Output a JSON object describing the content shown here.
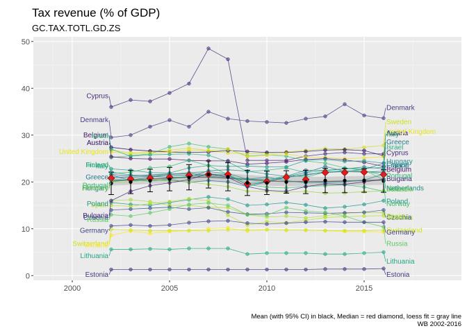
{
  "chart_data": {
    "type": "line",
    "title": "Tax revenue (% of GDP)",
    "subtitle": "GC.TAX.TOTL.GD.ZS",
    "caption": [
      "Mean (with 95% CI) in black, Median = red diamond, loess fit = gray line",
      "WB 2002-2016"
    ],
    "xlabel": "",
    "ylabel": "",
    "xlim": [
      1998,
      2020
    ],
    "ylim": [
      -1,
      51
    ],
    "x_ticks": [
      2000,
      2005,
      2010,
      2015
    ],
    "y_ticks": [
      0,
      10,
      20,
      30,
      40,
      50
    ],
    "grid": true,
    "x": [
      2002,
      2003,
      2004,
      2005,
      2006,
      2007,
      2008,
      2009,
      2010,
      2011,
      2012,
      2013,
      2014,
      2015,
      2016
    ],
    "series": [
      {
        "name": "Cyprus",
        "color": "#472d7b",
        "values": [
          36.0,
          37.5,
          37.2,
          39.0,
          41.0,
          48.5,
          46.2,
          24.6,
          24.6,
          24.6,
          25.5,
          26.0,
          26.3,
          26.0,
          26.0
        ]
      },
      {
        "name": "Denmark",
        "color": "#433e85",
        "values": [
          29.5,
          30.0,
          31.8,
          33.2,
          31.8,
          35.0,
          33.5,
          33.0,
          32.8,
          32.6,
          33.5,
          34.0,
          36.6,
          34.2,
          33.6
        ]
      },
      {
        "name": "Sweden",
        "color": "#cde11d",
        "values": [
          26.8,
          26.2,
          26.4,
          26.8,
          27.2,
          26.7,
          26.2,
          26.0,
          26.1,
          26.4,
          26.7,
          27.1,
          27.0,
          27.4,
          27.8
        ]
      },
      {
        "name": "Norway",
        "color": "#3fbc73",
        "values": [
          25.2,
          25.6,
          26.0,
          27.5,
          28.2,
          27.5,
          27.0,
          25.5,
          25.8,
          25.5,
          24.5,
          24.0,
          23.0,
          22.5,
          20.5
        ]
      },
      {
        "name": "Austria",
        "color": "#2c0f5e",
        "values": [
          27.4,
          26.9,
          26.6,
          26.4,
          26.3,
          26.4,
          26.7,
          26.5,
          26.3,
          26.3,
          26.5,
          26.8,
          26.9,
          26.7,
          25.6
        ]
      },
      {
        "name": "United Kingdom",
        "color": "#e8e419",
        "values": [
          26.4,
          26.0,
          26.1,
          26.4,
          26.8,
          26.7,
          27.0,
          25.4,
          25.7,
          26.0,
          25.3,
          25.2,
          25.0,
          25.1,
          25.4
        ]
      },
      {
        "name": "Israel",
        "color": "#27ad81",
        "values": [
          27.0,
          25.5,
          25.8,
          25.9,
          26.0,
          25.7,
          24.3,
          22.2,
          22.5,
          23.0,
          22.0,
          22.4,
          22.8,
          22.9,
          23.1
        ]
      },
      {
        "name": "Belgium",
        "color": "#481467",
        "values": [
          25.4,
          25.0,
          24.9,
          24.9,
          24.6,
          24.5,
          24.5,
          23.8,
          24.0,
          24.3,
          24.8,
          25.0,
          24.7,
          24.2,
          23.3
        ]
      },
      {
        "name": "Italy",
        "color": "#1f9a8a",
        "values": [
          22.8,
          22.5,
          22.0,
          21.9,
          23.0,
          23.5,
          23.3,
          23.4,
          23.2,
          23.2,
          24.6,
          24.8,
          24.4,
          24.5,
          24.0
        ]
      },
      {
        "name": "Finland",
        "color": "#1e9c89",
        "values": [
          22.1,
          21.5,
          21.3,
          21.5,
          21.4,
          21.2,
          21.0,
          20.6,
          20.5,
          21.0,
          21.4,
          22.2,
          22.2,
          22.1,
          22.3
        ]
      },
      {
        "name": "Greece",
        "color": "#2a788e",
        "values": [
          21.5,
          20.3,
          20.2,
          20.5,
          19.9,
          20.3,
          20.0,
          19.0,
          20.0,
          21.1,
          22.0,
          23.3,
          22.3,
          22.7,
          24.0
        ]
      },
      {
        "name": "Ireland",
        "color": "#38b977",
        "values": [
          21.8,
          22.1,
          23.0,
          23.3,
          24.6,
          23.5,
          21.6,
          19.4,
          18.9,
          18.7,
          19.0,
          19.2,
          19.4,
          18.9,
          18.0
        ]
      },
      {
        "name": "France",
        "color": "#2d708e",
        "values": [
          21.6,
          21.3,
          21.5,
          21.7,
          21.8,
          21.4,
          21.4,
          19.4,
          20.0,
          21.0,
          21.6,
          22.0,
          22.2,
          22.2,
          22.0
        ]
      },
      {
        "name": "Hungary",
        "color": "#23888e",
        "values": [
          21.0,
          21.0,
          21.2,
          21.0,
          21.0,
          22.4,
          22.6,
          22.3,
          21.7,
          21.2,
          22.5,
          22.5,
          22.8,
          23.2,
          22.8
        ]
      },
      {
        "name": "Netherlands",
        "color": "#21918c",
        "values": [
          20.5,
          20.4,
          21.0,
          21.6,
          22.0,
          22.2,
          21.8,
          20.6,
          21.0,
          20.3,
          19.8,
          19.9,
          20.0,
          20.4,
          21.7
        ]
      },
      {
        "name": "Portugal",
        "color": "#35b779",
        "values": [
          20.0,
          20.5,
          20.2,
          20.6,
          21.3,
          21.6,
          21.6,
          19.8,
          20.1,
          21.5,
          21.0,
          22.1,
          22.4,
          22.4,
          21.4
        ]
      },
      {
        "name": "Slovenia",
        "color": "#95d840",
        "values": [
          19.8,
          20.0,
          20.5,
          20.2,
          20.0,
          19.5,
          19.0,
          18.0,
          18.0,
          17.8,
          18.0,
          17.6,
          17.7,
          17.9,
          18.1
        ]
      },
      {
        "name": "Slovakia",
        "color": "#addc30",
        "values": [
          16.0,
          16.2,
          15.8,
          15.0,
          15.0,
          14.6,
          14.5,
          13.0,
          12.5,
          12.7,
          12.3,
          12.8,
          13.3,
          13.5,
          13.4
        ]
      },
      {
        "name": "Poland",
        "color": "#1f988b",
        "values": [
          15.6,
          15.2,
          15.0,
          15.6,
          16.2,
          16.8,
          16.3,
          15.0,
          15.2,
          15.6,
          15.1,
          14.4,
          14.7,
          15.2,
          16.0
        ]
      },
      {
        "name": "Spain",
        "color": "#b5de2b",
        "values": [
          15.0,
          14.8,
          15.4,
          15.8,
          16.4,
          16.0,
          12.9,
          10.8,
          11.5,
          11.3,
          11.8,
          12.4,
          12.6,
          12.7,
          12.8
        ]
      },
      {
        "name": "Bulgaria",
        "color": "#482475",
        "values": [
          16.0,
          18.0,
          19.2,
          19.8,
          20.5,
          21.8,
          21.0,
          19.0,
          18.2,
          18.0,
          19.0,
          19.6,
          19.5,
          20.0,
          20.6
        ]
      },
      {
        "name": "Czechia",
        "color": "#3b528b",
        "values": [
          14.0,
          14.2,
          14.4,
          14.6,
          14.2,
          14.5,
          13.6,
          13.1,
          13.2,
          13.5,
          13.4,
          13.3,
          13.4,
          13.5,
          14.0
        ]
      },
      {
        "name": "Russia",
        "color": "#5ec962",
        "values": [
          13.0,
          12.7,
          13.4,
          14.2,
          15.2,
          15.5,
          15.0,
          13.0,
          12.9,
          14.5,
          13.8,
          13.5,
          12.7,
          11.4,
          10.4
        ]
      },
      {
        "name": "Germany",
        "color": "#414487",
        "values": [
          10.6,
          10.8,
          10.6,
          10.8,
          11.3,
          11.6,
          11.7,
          11.2,
          11.0,
          11.2,
          11.4,
          11.5,
          11.4,
          11.4,
          11.4
        ]
      },
      {
        "name": "Ukraine",
        "color": "#fde725",
        "values": [
          8.6,
          9.5,
          9.0,
          9.4,
          9.6,
          10.0,
          10.2,
          9.5,
          9.8,
          9.7,
          9.7,
          9.6,
          9.4,
          9.4,
          9.3
        ]
      },
      {
        "name": "Switzerland",
        "color": "#d2e21b",
        "values": [
          9.9,
          9.7,
          9.6,
          9.6,
          9.6,
          9.6,
          9.8,
          9.8,
          9.8,
          9.7,
          9.7,
          9.6,
          9.6,
          9.6,
          9.7
        ]
      },
      {
        "name": "Lithuania",
        "color": "#22a884",
        "values": [
          5.6,
          5.6,
          5.7,
          5.6,
          5.8,
          5.8,
          5.8,
          4.6,
          4.8,
          4.8,
          4.8,
          4.6,
          4.6,
          4.8,
          5.0
        ]
      },
      {
        "name": "Estonia",
        "color": "#46337e",
        "values": [
          1.3,
          1.3,
          1.3,
          1.3,
          1.3,
          1.3,
          1.3,
          1.3,
          1.3,
          1.3,
          1.3,
          1.4,
          1.4,
          1.4,
          1.5
        ]
      }
    ],
    "mean": [
      19.7,
      20.0,
      20.3,
      20.6,
      21.0,
      21.6,
      21.1,
      19.8,
      19.8,
      20.0,
      20.0,
      20.3,
      20.3,
      20.3,
      20.2
    ],
    "mean_ci_half": [
      2.4,
      2.5,
      2.4,
      2.5,
      2.7,
      2.9,
      3.0,
      2.7,
      2.5,
      2.4,
      2.5,
      2.6,
      2.6,
      2.5,
      2.4
    ],
    "median": [
      20.8,
      20.6,
      20.8,
      21.0,
      21.4,
      21.6,
      21.6,
      19.6,
      20.1,
      21.0,
      20.5,
      22.0,
      22.0,
      22.1,
      21.6
    ],
    "loess": [
      20.2,
      20.4,
      20.6,
      20.8,
      21.0,
      21.0,
      20.8,
      20.5,
      20.2,
      20.1,
      20.1,
      20.1,
      20.2,
      20.3,
      20.4
    ],
    "left_labels": [
      {
        "text": "Cyprus",
        "color": "#472d7b",
        "y": 38.3
      },
      {
        "text": "Denmark",
        "color": "#433e85",
        "y": 33.2
      },
      {
        "text": "Austria",
        "color": "#2c0f5e",
        "y": 28.3
      },
      {
        "text": "Belgium",
        "color": "#481467",
        "y": 30.0
      },
      {
        "text": "Israel",
        "color": "#27ad81",
        "y": 29.8
      },
      {
        "text": "United Kingdom",
        "color": "#e8e419",
        "y": 26.4
      },
      {
        "text": "Finland",
        "color": "#1e9c89",
        "y": 23.6
      },
      {
        "text": "Italy",
        "color": "#1f9a8a",
        "y": 23.4
      },
      {
        "text": "Ireland",
        "color": "#38b977",
        "y": 23.6
      },
      {
        "text": "Greece",
        "color": "#2a788e",
        "y": 21.0
      },
      {
        "text": "Hungary",
        "color": "#23888e",
        "y": 18.6
      },
      {
        "text": "Slovenia",
        "color": "#95d840",
        "y": 18.8
      },
      {
        "text": "Portugal",
        "color": "#35b779",
        "y": 19.2
      },
      {
        "text": "Spain",
        "color": "#b5de2b",
        "y": 15.1
      },
      {
        "text": "Poland",
        "color": "#1f988b",
        "y": 15.3
      },
      {
        "text": "Bulgaria",
        "color": "#482475",
        "y": 12.8
      },
      {
        "text": "Czechia",
        "color": "#3b528b",
        "y": 12.3
      },
      {
        "text": "Russia",
        "color": "#5ec962",
        "y": 11.9
      },
      {
        "text": "Germany",
        "color": "#414487",
        "y": 9.6
      },
      {
        "text": "Switzerland",
        "color": "#d2e21b",
        "y": 6.8
      },
      {
        "text": "Ukraine",
        "color": "#fde725",
        "y": 6.5
      },
      {
        "text": "Lithuania",
        "color": "#22a884",
        "y": 4.2
      },
      {
        "text": "Estonia",
        "color": "#46337e",
        "y": 0.2
      }
    ],
    "right_labels": [
      {
        "text": "Denmark",
        "color": "#433e85",
        "y": 35.8
      },
      {
        "text": "Sweden",
        "color": "#cde11d",
        "y": 32.8
      },
      {
        "text": "Austria",
        "color": "#2c0f5e",
        "y": 30.4
      },
      {
        "text": "United Kingdom",
        "color": "#e8e419",
        "y": 30.7
      },
      {
        "text": "Italy",
        "color": "#1f9a8a",
        "y": 30.2
      },
      {
        "text": "Greece",
        "color": "#2a788e",
        "y": 28.5
      },
      {
        "text": "Israel",
        "color": "#27ad81",
        "y": 27.4
      },
      {
        "text": "Cyprus",
        "color": "#472d7b",
        "y": 26.2
      },
      {
        "text": "Finland",
        "color": "#1e9c89",
        "y": 23.5
      },
      {
        "text": "France",
        "color": "#2d708e",
        "y": 23.5
      },
      {
        "text": "Hungary",
        "color": "#23888e",
        "y": 24.3
      },
      {
        "text": "Belgium",
        "color": "#481467",
        "y": 22.6
      },
      {
        "text": "Bulgaria",
        "color": "#482475",
        "y": 20.6
      },
      {
        "text": "Portugal",
        "color": "#35b779",
        "y": 21.3
      },
      {
        "text": "Ireland",
        "color": "#38b977",
        "y": 18.4
      },
      {
        "text": "Slovenia",
        "color": "#95d840",
        "y": 18.4
      },
      {
        "text": "Netherlands",
        "color": "#21918c",
        "y": 18.6
      },
      {
        "text": "Poland",
        "color": "#1f988b",
        "y": 15.8
      },
      {
        "text": "Norway",
        "color": "#3fbc73",
        "y": 15.3
      },
      {
        "text": "Slovakia",
        "color": "#addc30",
        "y": 12.4
      },
      {
        "text": "Czechia",
        "color": "#3b528b",
        "y": 12.4
      },
      {
        "text": "Spain",
        "color": "#b5de2b",
        "y": 12.6
      },
      {
        "text": "Switzerland",
        "color": "#d2e21b",
        "y": 9.7
      },
      {
        "text": "Germany",
        "color": "#414487",
        "y": 9.2
      },
      {
        "text": "Russia",
        "color": "#5ec962",
        "y": 6.8
      },
      {
        "text": "Lithuania",
        "color": "#22a884",
        "y": 3.0
      },
      {
        "text": "Estonia",
        "color": "#46337e",
        "y": 0.2
      }
    ]
  }
}
